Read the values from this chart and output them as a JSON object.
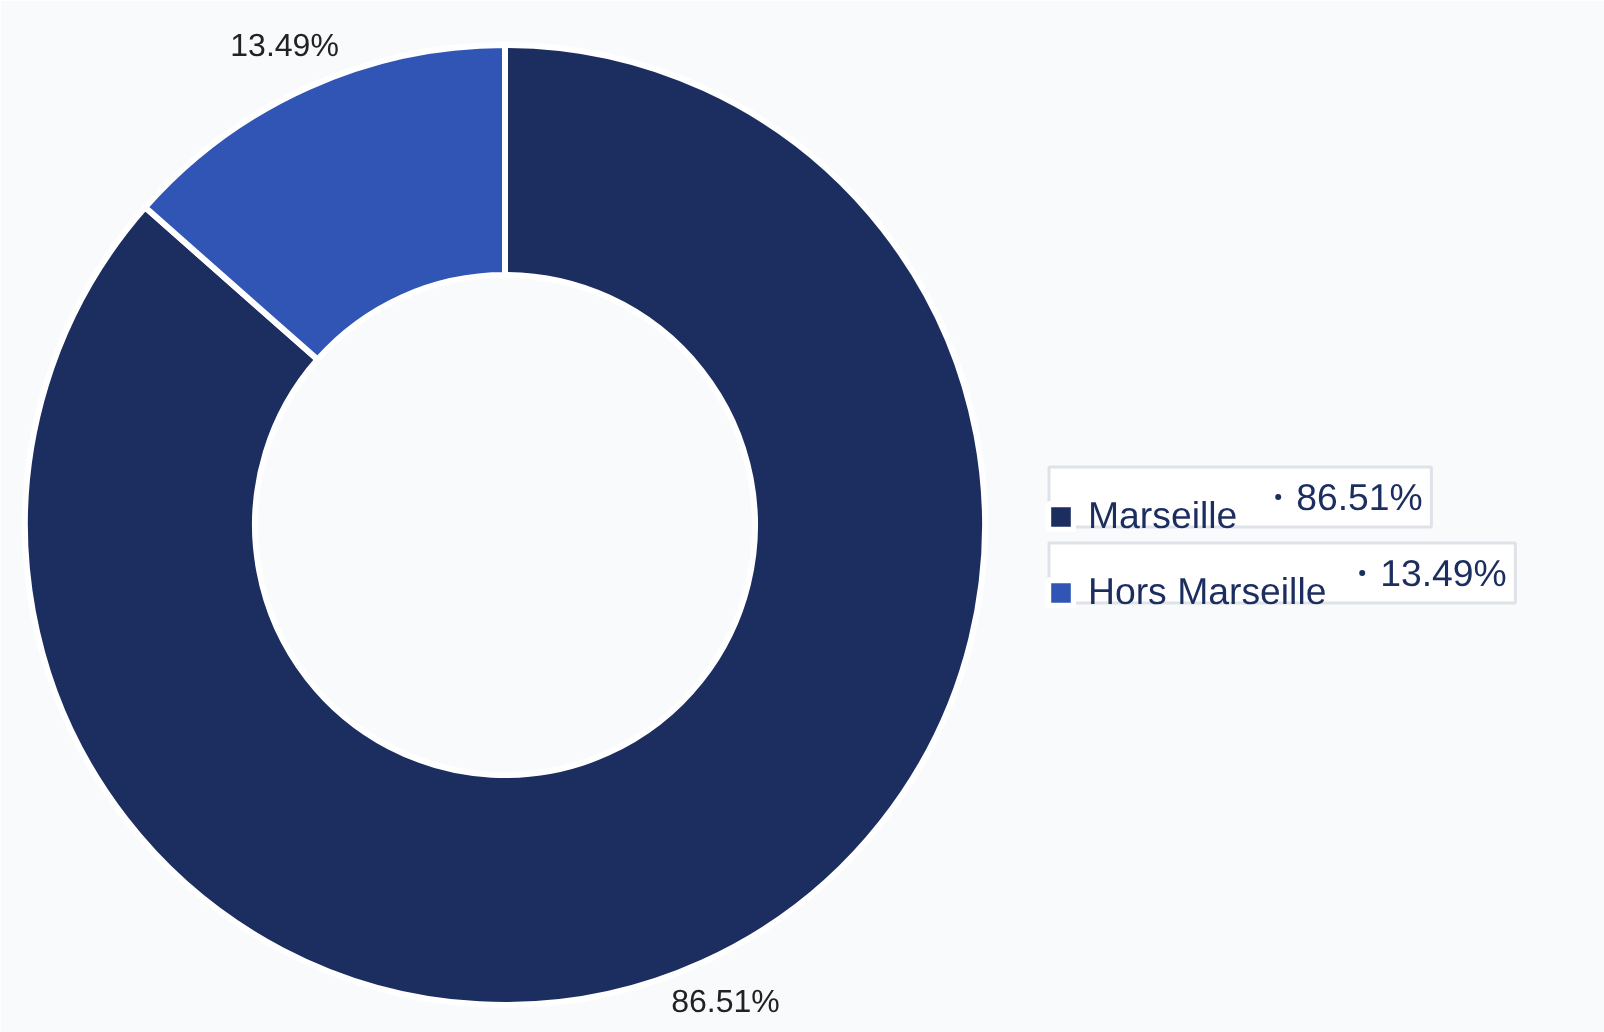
{
  "chart_data": {
    "type": "donut",
    "categories": [
      "Marseille",
      "Hors Marseille"
    ],
    "values": [
      86.51,
      13.49
    ],
    "colors": [
      "#1c2d5f",
      "#3055b5"
    ],
    "value_labels": [
      "86.51%",
      "13.49%"
    ],
    "legend": "right"
  }
}
